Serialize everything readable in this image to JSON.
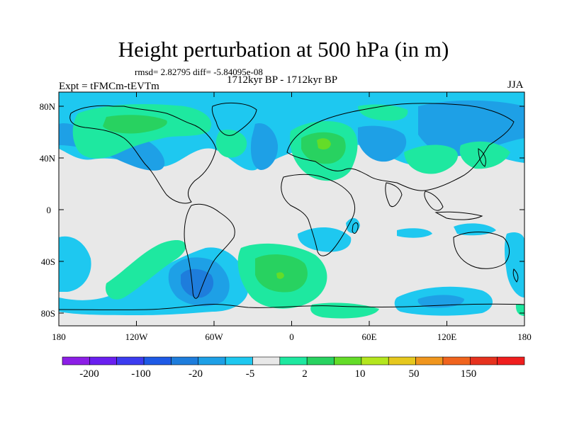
{
  "title": "Height perturbation at 500 hPa (in m)",
  "stats": {
    "rmsd_text": "rmsd= 2.82795  diff= -5.84095e-08"
  },
  "period": "1712kyr BP - 1712kyr BP",
  "experiment": "Expt = tFMCm-tEVTm",
  "season": "JJA",
  "axes": {
    "lat_labels": [
      "80N",
      "40N",
      "0",
      "40S",
      "80S"
    ],
    "lon_labels": [
      "180",
      "120W",
      "60W",
      "0",
      "60E",
      "120E",
      "180"
    ]
  },
  "colorbar": {
    "labels": [
      "-200",
      "-100",
      "-20",
      "-5",
      "2",
      "10",
      "50",
      "150"
    ],
    "colors": [
      "#8c1ee6",
      "#6a1ff0",
      "#3c3cf0",
      "#1e5ae6",
      "#1e7ddc",
      "#1ea0e6",
      "#1ec8f0",
      "#e8e8e8",
      "#1ee8a0",
      "#28d260",
      "#64dc28",
      "#b4e61e",
      "#e6c81e",
      "#f0961e",
      "#f0641e",
      "#e6321e",
      "#f01e1e"
    ]
  },
  "colors": {
    "neutral": "#e8e8e8",
    "cyan_light": "#1ec8f0",
    "cyan": "#1ea0e6",
    "blue": "#1e7ddc",
    "blue_dark": "#1e5ae6",
    "green_light": "#1ee8a0",
    "green": "#28d260",
    "lime": "#64dc28",
    "yellow": "#e6c81e"
  }
}
